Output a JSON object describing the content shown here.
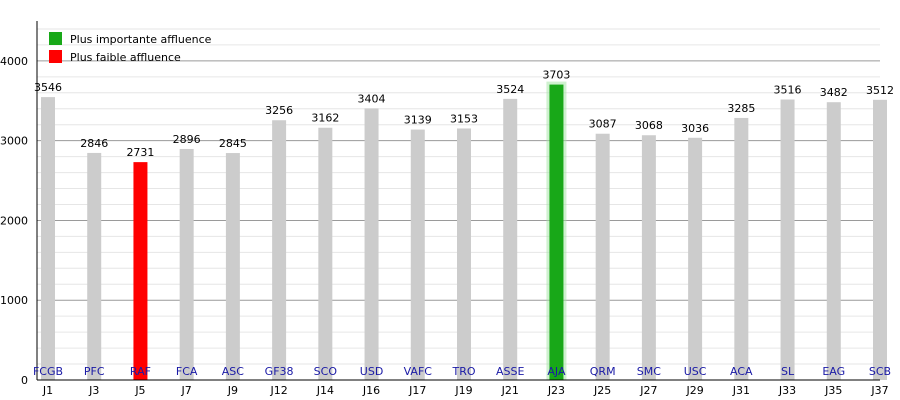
{
  "chart_data": {
    "type": "bar",
    "title": "",
    "xlabel": "",
    "ylabel": "",
    "ylim": [
      0,
      4500
    ],
    "yticks": [
      0,
      1000,
      2000,
      3000,
      4000
    ],
    "grid": true,
    "legend_position": "top-left",
    "legend": [
      {
        "name": "Plus importante affluence",
        "color": "#18a818"
      },
      {
        "name": "Plus faible affluence",
        "color": "#ff0000"
      }
    ],
    "categories": [
      "J1",
      "J3",
      "J5",
      "J7",
      "J9",
      "J12",
      "J14",
      "J16",
      "J17",
      "J19",
      "J21",
      "J23",
      "J25",
      "J27",
      "J29",
      "J31",
      "J33",
      "J35",
      "J37"
    ],
    "teams": [
      "FCGB",
      "PFC",
      "RAF",
      "FCA",
      "ASC",
      "GF38",
      "SCO",
      "USD",
      "VAFC",
      "TRO",
      "ASSE",
      "AJA",
      "QRM",
      "SMC",
      "USC",
      "ACA",
      "SL",
      "EAG",
      "SCB"
    ],
    "values": [
      3546,
      2846,
      2731,
      2896,
      2845,
      3256,
      3162,
      3404,
      3139,
      3153,
      3524,
      3703,
      3087,
      3068,
      3036,
      3285,
      3516,
      3482,
      3512
    ],
    "bar_colors": {
      "default": "#cccccc",
      "highest": "#18a818",
      "lowest": "#ff0000"
    },
    "highest_index": 11,
    "lowest_index": 2
  }
}
